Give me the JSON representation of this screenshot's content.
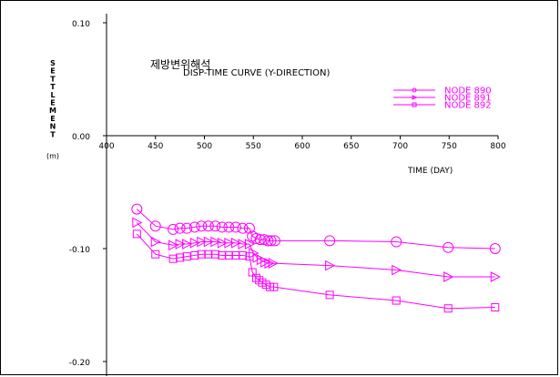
{
  "chart_data": {
    "type": "line",
    "title_korean": "제방변위해석",
    "title": "DISP-TIME CURVE (Y-DIRECTION)",
    "ylabel": "SETTLEMENT",
    "ylabel_unit": "(m)",
    "xlabel": "TIME (DAY)",
    "xlim": [
      400,
      800
    ],
    "ylim": [
      -0.2,
      0.1
    ],
    "x_ticks": [
      400,
      450,
      500,
      550,
      600,
      650,
      700,
      750,
      800
    ],
    "x_tick_labels": [
      "400",
      "450",
      "500",
      "550",
      "600",
      "650",
      "700",
      "750",
      "800"
    ],
    "y_ticks": [
      0.1,
      0.0,
      -0.1,
      -0.2
    ],
    "y_tick_labels": [
      "0.10",
      "0.00",
      "-0.10",
      "-0.20"
    ],
    "grid": false,
    "legend_position": "top-right",
    "line_color": "#ff00ff",
    "series": [
      {
        "name": "NODE 890",
        "marker": "circle",
        "points": [
          [
            431,
            -0.065
          ],
          [
            450,
            -0.08
          ],
          [
            468,
            -0.083
          ],
          [
            475,
            -0.082
          ],
          [
            482,
            -0.082
          ],
          [
            490,
            -0.081
          ],
          [
            497,
            -0.08
          ],
          [
            504,
            -0.08
          ],
          [
            511,
            -0.08
          ],
          [
            518,
            -0.081
          ],
          [
            525,
            -0.081
          ],
          [
            532,
            -0.081
          ],
          [
            539,
            -0.082
          ],
          [
            546,
            -0.082
          ],
          [
            549,
            -0.089
          ],
          [
            553,
            -0.091
          ],
          [
            557,
            -0.092
          ],
          [
            561,
            -0.092
          ],
          [
            565,
            -0.093
          ],
          [
            568,
            -0.093
          ],
          [
            572,
            -0.093
          ],
          [
            628,
            -0.093
          ],
          [
            696,
            -0.094
          ],
          [
            749,
            -0.099
          ],
          [
            797,
            -0.1
          ]
        ]
      },
      {
        "name": "NODE 891",
        "marker": "triangle",
        "points": [
          [
            431,
            -0.077
          ],
          [
            450,
            -0.094
          ],
          [
            468,
            -0.097
          ],
          [
            475,
            -0.096
          ],
          [
            482,
            -0.096
          ],
          [
            490,
            -0.095
          ],
          [
            497,
            -0.094
          ],
          [
            504,
            -0.094
          ],
          [
            511,
            -0.094
          ],
          [
            518,
            -0.095
          ],
          [
            525,
            -0.095
          ],
          [
            532,
            -0.095
          ],
          [
            539,
            -0.096
          ],
          [
            546,
            -0.096
          ],
          [
            550,
            -0.104
          ],
          [
            554,
            -0.108
          ],
          [
            558,
            -0.11
          ],
          [
            562,
            -0.112
          ],
          [
            566,
            -0.113
          ],
          [
            570,
            -0.113
          ],
          [
            628,
            -0.115
          ],
          [
            696,
            -0.119
          ],
          [
            749,
            -0.125
          ],
          [
            797,
            -0.125
          ]
        ]
      },
      {
        "name": "NODE 892",
        "marker": "square",
        "points": [
          [
            431,
            -0.087
          ],
          [
            450,
            -0.105
          ],
          [
            468,
            -0.109
          ],
          [
            475,
            -0.108
          ],
          [
            482,
            -0.107
          ],
          [
            490,
            -0.106
          ],
          [
            497,
            -0.105
          ],
          [
            504,
            -0.105
          ],
          [
            511,
            -0.105
          ],
          [
            518,
            -0.106
          ],
          [
            525,
            -0.106
          ],
          [
            532,
            -0.106
          ],
          [
            539,
            -0.106
          ],
          [
            546,
            -0.107
          ],
          [
            549,
            -0.121
          ],
          [
            553,
            -0.126
          ],
          [
            556,
            -0.128
          ],
          [
            559,
            -0.13
          ],
          [
            563,
            -0.132
          ],
          [
            567,
            -0.134
          ],
          [
            571,
            -0.134
          ],
          [
            628,
            -0.141
          ],
          [
            696,
            -0.146
          ],
          [
            749,
            -0.153
          ],
          [
            797,
            -0.152
          ]
        ]
      }
    ]
  }
}
